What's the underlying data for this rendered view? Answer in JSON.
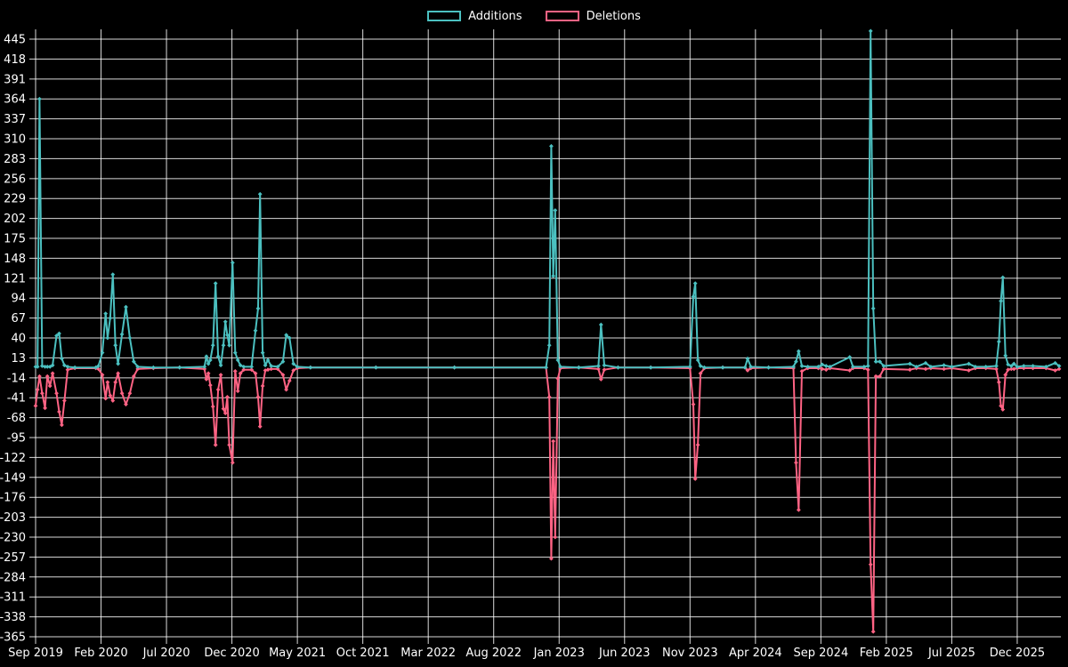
{
  "chart_data": {
    "type": "line",
    "title": "",
    "legend_position": "top-center",
    "grid": true,
    "background_color": "#000000",
    "grid_color": "rgba(255,255,255,0.85)",
    "text_color": "#ffffff",
    "legend": [
      {
        "label": "Additions",
        "color": "#4bc0c0"
      },
      {
        "label": "Deletions",
        "color": "#ff6384"
      }
    ],
    "x_axis": {
      "start_label": "Sep 2019",
      "end_label": "Dec 2025",
      "tick_interval_months": 5,
      "tick_labels": [
        "Sep 2019",
        "Feb 2020",
        "Jul 2020",
        "Dec 2020",
        "May 2021",
        "Oct 2021",
        "Mar 2022",
        "Aug 2022",
        "Jan 2023",
        "Jun 2023",
        "Nov 2023",
        "Apr 2024",
        "Sep 2024",
        "Feb 2025",
        "Jul 2025",
        "Dec 2025"
      ]
    },
    "y_axis": {
      "tick_step": 27,
      "ticks": [
        445,
        418,
        391,
        364,
        337,
        310,
        283,
        256,
        229,
        202,
        175,
        148,
        121,
        94,
        67,
        40,
        13,
        -14,
        -41,
        -68,
        -95,
        -122,
        -149,
        -176,
        -203,
        -230,
        -257,
        -284,
        -311,
        -338,
        -365
      ]
    },
    "series_names": [
      "Additions",
      "Deletions"
    ],
    "points_format": "[months_since_Sep_2019, additions, deletions]",
    "points": [
      [
        0,
        1,
        -52
      ],
      [
        0.15,
        1,
        -30
      ],
      [
        0.3,
        364,
        -12
      ],
      [
        0.5,
        2,
        -35
      ],
      [
        0.72,
        1,
        -55
      ],
      [
        0.9,
        1,
        -12
      ],
      [
        1.1,
        1,
        -25
      ],
      [
        1.3,
        3,
        -8
      ],
      [
        1.6,
        43,
        -35
      ],
      [
        1.8,
        46,
        -60
      ],
      [
        2.0,
        12,
        -78
      ],
      [
        2.2,
        3,
        -45
      ],
      [
        2.45,
        1,
        -3
      ],
      [
        3,
        0,
        -1
      ],
      [
        4.6,
        0,
        -1
      ],
      [
        4.8,
        2,
        -2
      ],
      [
        5.1,
        20,
        -10
      ],
      [
        5.35,
        73,
        -42
      ],
      [
        5.5,
        40,
        -20
      ],
      [
        5.7,
        67,
        -38
      ],
      [
        5.9,
        126,
        -45
      ],
      [
        6.1,
        30,
        -20
      ],
      [
        6.3,
        5,
        -8
      ],
      [
        6.6,
        45,
        -35
      ],
      [
        6.9,
        82,
        -50
      ],
      [
        7.2,
        40,
        -35
      ],
      [
        7.5,
        8,
        -12
      ],
      [
        7.8,
        1,
        -2
      ],
      [
        9,
        0,
        -1
      ],
      [
        11,
        0,
        0
      ],
      [
        12.9,
        1,
        -2
      ],
      [
        13.05,
        15,
        -16
      ],
      [
        13.2,
        5,
        -8
      ],
      [
        13.35,
        10,
        -24
      ],
      [
        13.55,
        30,
        -53
      ],
      [
        13.75,
        114,
        -105
      ],
      [
        13.95,
        15,
        -30
      ],
      [
        14.15,
        3,
        -10
      ],
      [
        14.35,
        30,
        -56
      ],
      [
        14.5,
        62,
        -62
      ],
      [
        14.65,
        44,
        -40
      ],
      [
        14.8,
        30,
        -105
      ],
      [
        15.05,
        142,
        -129
      ],
      [
        15.25,
        20,
        -5
      ],
      [
        15.45,
        10,
        -32
      ],
      [
        15.65,
        3,
        -8
      ],
      [
        15.9,
        1,
        -3
      ],
      [
        16.5,
        1,
        -3
      ],
      [
        16.8,
        50,
        -8
      ],
      [
        17.0,
        80,
        -40
      ],
      [
        17.15,
        235,
        -80
      ],
      [
        17.35,
        20,
        -25
      ],
      [
        17.55,
        3,
        -4
      ],
      [
        17.75,
        10,
        -3
      ],
      [
        18.0,
        2,
        -2
      ],
      [
        18.5,
        1,
        -2
      ],
      [
        18.9,
        8,
        -10
      ],
      [
        19.15,
        44,
        -30
      ],
      [
        19.4,
        40,
        -18
      ],
      [
        19.7,
        5,
        -4
      ],
      [
        20.0,
        1,
        -1
      ],
      [
        21,
        0,
        0
      ],
      [
        26,
        0,
        0
      ],
      [
        32,
        0,
        0
      ],
      [
        39.0,
        0,
        0
      ],
      [
        39.25,
        30,
        -40
      ],
      [
        39.4,
        300,
        -259
      ],
      [
        39.55,
        124,
        -100
      ],
      [
        39.7,
        213,
        -230
      ],
      [
        39.9,
        10,
        -15
      ],
      [
        40.1,
        1,
        -1
      ],
      [
        41.5,
        0,
        0
      ],
      [
        43.0,
        2,
        -2
      ],
      [
        43.2,
        58,
        -16
      ],
      [
        43.45,
        3,
        -3
      ],
      [
        44.5,
        0,
        0
      ],
      [
        47,
        0,
        0
      ],
      [
        50.0,
        1,
        -1
      ],
      [
        50.25,
        96,
        -50
      ],
      [
        50.4,
        114,
        -151
      ],
      [
        50.6,
        10,
        -105
      ],
      [
        50.8,
        2,
        -8
      ],
      [
        51.1,
        0,
        -1
      ],
      [
        52.5,
        0,
        0
      ],
      [
        54.2,
        0,
        0
      ],
      [
        54.4,
        12,
        -4
      ],
      [
        54.65,
        1,
        -1
      ],
      [
        56,
        0,
        0
      ],
      [
        57.9,
        1,
        -1
      ],
      [
        58.1,
        8,
        -129
      ],
      [
        58.3,
        22,
        -193
      ],
      [
        58.55,
        2,
        -5
      ],
      [
        59.0,
        1,
        -1
      ],
      [
        59.8,
        1,
        -1
      ],
      [
        60.1,
        4,
        -2
      ],
      [
        60.4,
        2,
        -3
      ],
      [
        60.7,
        1,
        -1
      ],
      [
        62.2,
        14,
        -4
      ],
      [
        62.45,
        1,
        -1
      ],
      [
        63.3,
        1,
        -1
      ],
      [
        63.6,
        2,
        -3
      ],
      [
        63.8,
        456,
        -267
      ],
      [
        64.0,
        80,
        -358
      ],
      [
        64.2,
        8,
        -12
      ],
      [
        64.5,
        8,
        -12
      ],
      [
        64.8,
        2,
        -2
      ],
      [
        66.8,
        5,
        -3
      ],
      [
        67.3,
        1,
        -1
      ],
      [
        68.0,
        6,
        -2
      ],
      [
        68.4,
        1,
        -1
      ],
      [
        69.4,
        3,
        -2
      ],
      [
        70.0,
        1,
        -1
      ],
      [
        71.3,
        5,
        -4
      ],
      [
        71.8,
        1,
        -1
      ],
      [
        72.6,
        1,
        -1
      ],
      [
        73.4,
        2,
        -2
      ],
      [
        73.6,
        35,
        -20
      ],
      [
        73.75,
        90,
        -52
      ],
      [
        73.9,
        122,
        -57
      ],
      [
        74.1,
        16,
        -10
      ],
      [
        74.3,
        4,
        -3
      ],
      [
        74.55,
        2,
        -2
      ],
      [
        74.75,
        5,
        -2
      ],
      [
        75.0,
        1,
        -1
      ],
      [
        75.5,
        2,
        -1
      ],
      [
        76.2,
        2,
        -1
      ],
      [
        77.2,
        1,
        -1
      ],
      [
        77.9,
        6,
        -4
      ],
      [
        78.2,
        2,
        -2
      ]
    ]
  }
}
